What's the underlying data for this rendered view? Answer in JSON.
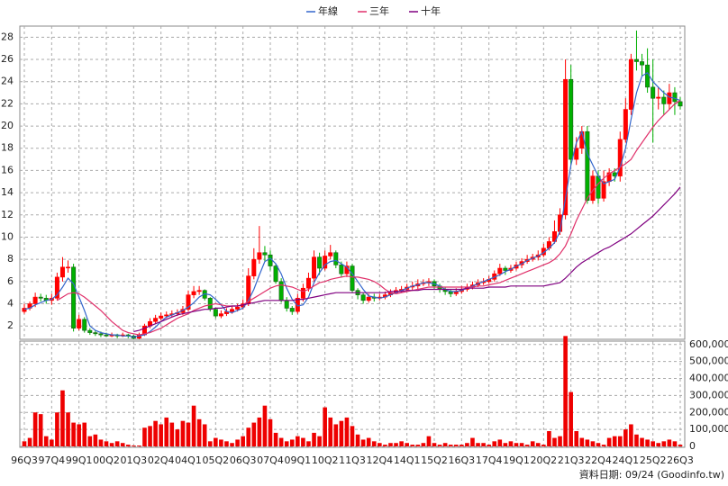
{
  "chart_data": {
    "type": "candlestick",
    "categories": [
      "96Q3",
      null,
      null,
      null,
      null,
      "97Q4",
      null,
      null,
      null,
      null,
      "99Q1",
      null,
      null,
      null,
      null,
      "00Q2",
      null,
      null,
      null,
      null,
      "01Q3",
      null,
      null,
      null,
      null,
      "02Q4",
      null,
      null,
      null,
      null,
      "04Q1",
      null,
      null,
      null,
      null,
      "05Q2",
      null,
      null,
      null,
      null,
      "06Q3",
      null,
      null,
      null,
      null,
      "07Q4",
      null,
      null,
      null,
      null,
      "09Q1",
      null,
      null,
      null,
      null,
      "10Q2",
      null,
      null,
      null,
      null,
      "11Q3",
      null,
      null,
      null,
      null,
      "12Q4",
      null,
      null,
      null,
      null,
      "14Q1",
      null,
      null,
      null,
      null,
      "15Q2",
      null,
      null,
      null,
      null,
      "16Q3",
      null,
      null,
      null,
      null,
      "17Q4",
      null,
      null,
      null,
      null,
      "19Q1",
      null,
      null,
      null,
      null,
      "20Q2",
      null,
      null,
      null,
      null,
      "21Q3",
      null,
      null,
      null,
      null,
      "22Q4",
      null,
      null,
      null,
      null,
      "24Q1",
      null,
      null,
      null,
      null,
      "25Q2",
      null,
      null,
      null,
      null,
      "26Q3"
    ],
    "open": [
      3.3,
      3.6,
      4.0,
      4.6,
      4.5,
      4.3,
      4.5,
      6.4,
      7.3,
      7.3,
      1.8,
      2.6,
      1.6,
      1.4,
      1.3,
      1.2,
      1.1,
      1.2,
      1.1,
      1.2,
      1.1,
      0.9,
      1.2,
      2.0,
      2.4,
      2.7,
      2.9,
      3.0,
      3.1,
      3.2,
      3.5,
      4.8,
      5.1,
      5.2,
      4.5,
      3.5,
      2.9,
      3.1,
      3.3,
      3.5,
      3.7,
      4.0,
      6.5,
      8.0,
      8.6,
      8.4,
      7.4,
      6.0,
      4.3,
      3.6,
      3.3,
      4.5,
      5.4,
      6.3,
      8.2,
      7.2,
      8.3,
      8.6,
      7.5,
      6.7,
      7.4,
      5.2,
      4.8,
      4.3,
      4.6,
      4.5,
      4.6,
      4.8,
      5.0,
      5.2,
      5.3,
      5.5,
      5.6,
      5.8,
      5.9,
      6.0,
      5.6,
      5.3,
      5.1,
      4.9,
      5.1,
      5.3,
      5.5,
      5.7,
      5.9,
      6.0,
      6.2,
      6.7,
      7.2,
      7.0,
      7.2,
      7.5,
      7.8,
      8.0,
      8.2,
      8.4,
      9.0,
      9.6,
      10.5,
      12.0,
      24.2,
      17.0,
      18.0,
      19.5,
      13.3,
      15.5,
      13.5,
      15.0,
      15.8,
      15.5,
      18.8,
      21.5,
      26.0,
      25.8,
      25.5,
      23.5,
      22.5,
      22.6,
      22.0,
      23.0,
      22.2
    ],
    "high": [
      4.0,
      4.2,
      5.0,
      4.9,
      4.8,
      4.9,
      6.8,
      8.2,
      7.9,
      7.6,
      3.0,
      2.8,
      1.8,
      1.6,
      1.5,
      1.4,
      1.4,
      1.3,
      1.4,
      1.3,
      1.2,
      1.4,
      2.2,
      2.7,
      3.0,
      3.2,
      3.3,
      3.4,
      3.5,
      3.8,
      5.2,
      5.6,
      5.6,
      5.3,
      4.6,
      3.6,
      3.4,
      3.6,
      3.8,
      4.0,
      4.4,
      7.2,
      9.0,
      11.0,
      9.2,
      8.8,
      7.6,
      6.3,
      4.6,
      3.8,
      4.9,
      5.8,
      6.8,
      8.8,
      8.6,
      8.8,
      9.3,
      8.8,
      7.8,
      7.8,
      7.6,
      5.4,
      5.0,
      4.9,
      4.9,
      4.9,
      5.1,
      5.3,
      5.5,
      5.6,
      5.8,
      6.0,
      6.2,
      6.2,
      6.3,
      6.2,
      5.8,
      5.5,
      5.3,
      5.4,
      5.6,
      5.8,
      6.0,
      6.2,
      6.3,
      6.5,
      7.0,
      7.6,
      7.4,
      7.5,
      7.8,
      8.1,
      8.4,
      8.5,
      8.8,
      9.4,
      10.0,
      11.5,
      12.6,
      26.0,
      25.5,
      19.0,
      20.0,
      20.0,
      16.0,
      16.0,
      16.0,
      16.2,
      16.2,
      19.5,
      22.5,
      26.5,
      28.6,
      26.5,
      27.0,
      26.0,
      23.5,
      23.2,
      23.8,
      23.5,
      22.6
    ],
    "low": [
      3.1,
      3.4,
      3.7,
      4.2,
      4.0,
      3.9,
      4.3,
      6.0,
      6.8,
      1.5,
      1.6,
      1.4,
      1.2,
      1.1,
      1.0,
      1.0,
      1.0,
      0.9,
      1.0,
      0.9,
      0.8,
      0.8,
      1.1,
      1.8,
      2.2,
      2.5,
      2.7,
      2.8,
      2.9,
      3.0,
      3.3,
      4.5,
      4.8,
      4.3,
      3.3,
      2.7,
      2.7,
      2.9,
      3.1,
      3.3,
      3.5,
      3.8,
      6.2,
      7.6,
      7.8,
      7.0,
      5.8,
      4.1,
      3.3,
      3.0,
      3.1,
      4.2,
      5.1,
      6.0,
      6.6,
      7.0,
      8.0,
      7.2,
      6.4,
      6.4,
      5.0,
      4.4,
      4.0,
      4.1,
      4.2,
      4.3,
      4.4,
      4.6,
      4.9,
      5.0,
      5.1,
      5.2,
      5.3,
      5.6,
      5.6,
      5.3,
      5.0,
      4.8,
      4.6,
      4.7,
      4.9,
      5.1,
      5.3,
      5.5,
      5.7,
      5.8,
      6.0,
      6.5,
      6.6,
      6.8,
      7.0,
      7.2,
      7.6,
      7.8,
      7.9,
      8.2,
      8.8,
      9.4,
      10.2,
      11.6,
      16.5,
      16.5,
      17.5,
      13.0,
      13.0,
      13.0,
      13.2,
      14.6,
      15.0,
      15.0,
      18.5,
      21.0,
      25.0,
      24.5,
      23.0,
      18.5,
      21.5,
      21.0,
      21.5,
      21.0,
      21.5
    ],
    "close": [
      3.6,
      4.0,
      4.6,
      4.5,
      4.3,
      4.5,
      6.4,
      7.3,
      7.3,
      1.8,
      2.6,
      1.6,
      1.4,
      1.3,
      1.2,
      1.1,
      1.2,
      1.1,
      1.2,
      1.1,
      0.9,
      1.2,
      2.0,
      2.4,
      2.7,
      2.9,
      3.0,
      3.1,
      3.2,
      3.5,
      4.8,
      5.1,
      5.2,
      4.5,
      3.5,
      2.9,
      3.1,
      3.3,
      3.5,
      3.7,
      4.0,
      6.5,
      8.0,
      8.6,
      8.4,
      7.4,
      6.0,
      4.3,
      3.6,
      3.3,
      4.5,
      5.4,
      6.3,
      8.2,
      7.2,
      8.3,
      8.6,
      7.5,
      6.7,
      7.4,
      5.2,
      4.8,
      4.3,
      4.6,
      4.5,
      4.6,
      4.8,
      5.0,
      5.2,
      5.3,
      5.5,
      5.6,
      5.8,
      5.9,
      6.0,
      5.6,
      5.3,
      5.1,
      4.9,
      5.1,
      5.3,
      5.5,
      5.7,
      5.9,
      6.0,
      6.2,
      6.7,
      7.2,
      7.0,
      7.2,
      7.5,
      7.8,
      8.0,
      8.2,
      8.4,
      9.0,
      9.6,
      10.5,
      12.0,
      24.2,
      17.0,
      18.0,
      19.5,
      13.3,
      15.5,
      13.5,
      15.0,
      15.8,
      15.5,
      18.8,
      21.5,
      26.0,
      25.8,
      25.5,
      23.5,
      22.5,
      22.6,
      22.0,
      23.0,
      22.2,
      21.8
    ],
    "up_color": "#ff0000",
    "down_color": "#00b000",
    "series": [
      {
        "name": "年線",
        "color": "#3366cc",
        "values": [
          3.5,
          3.6,
          3.9,
          4.1,
          4.3,
          4.4,
          4.8,
          5.5,
          6.3,
          5.8,
          4.6,
          3.4,
          2.0,
          1.6,
          1.4,
          1.3,
          1.2,
          1.2,
          1.1,
          1.1,
          1.0,
          1.1,
          1.2,
          1.5,
          1.9,
          2.4,
          2.8,
          3.0,
          3.2,
          3.4,
          3.7,
          4.1,
          4.6,
          4.9,
          4.8,
          4.4,
          3.9,
          3.3,
          3.2,
          3.4,
          3.6,
          4.3,
          5.3,
          6.6,
          7.8,
          8.1,
          7.6,
          6.7,
          5.4,
          4.4,
          3.8,
          3.9,
          4.6,
          5.9,
          6.8,
          7.5,
          7.8,
          7.9,
          7.6,
          7.3,
          6.7,
          6.0,
          5.3,
          4.7,
          4.6,
          4.5,
          4.6,
          4.8,
          5.0,
          5.2,
          5.4,
          5.6,
          5.7,
          5.9,
          5.9,
          5.8,
          5.6,
          5.3,
          5.1,
          5.1,
          5.2,
          5.4,
          5.6,
          5.8,
          6.0,
          6.2,
          6.4,
          6.6,
          6.9,
          7.1,
          7.4,
          7.6,
          7.9,
          8.1,
          8.3,
          8.6,
          9.0,
          9.5,
          10.5,
          13.5,
          16.5,
          18.5,
          19.5,
          17.5,
          16.5,
          15.5,
          14.8,
          15.0,
          15.2,
          16.3,
          18.0,
          20.6,
          23.0,
          24.5,
          24.8,
          24.0,
          23.5,
          23.0,
          22.6,
          22.5,
          22.3
        ]
      },
      {
        "name": "三年",
        "color": "#e0306a",
        "values": [
          null,
          null,
          null,
          null,
          null,
          null,
          4.3,
          4.6,
          4.9,
          5.0,
          4.9,
          4.6,
          4.2,
          3.8,
          3.4,
          2.9,
          2.4,
          2.0,
          1.6,
          1.4,
          1.3,
          1.2,
          1.3,
          1.4,
          1.6,
          1.8,
          2.1,
          2.4,
          2.7,
          2.9,
          3.1,
          3.4,
          3.6,
          3.8,
          3.9,
          4.0,
          3.9,
          3.8,
          3.8,
          3.8,
          3.9,
          4.2,
          4.5,
          4.8,
          5.1,
          5.4,
          5.6,
          5.7,
          5.6,
          5.5,
          5.3,
          5.1,
          5.3,
          5.6,
          5.9,
          6.0,
          6.2,
          6.3,
          6.4,
          6.5,
          6.4,
          6.4,
          6.3,
          6.2,
          6.0,
          5.7,
          5.3,
          5.0,
          4.9,
          5.0,
          5.1,
          5.2,
          5.3,
          5.4,
          5.5,
          5.5,
          5.5,
          5.5,
          5.5,
          5.5,
          5.5,
          5.5,
          5.5,
          5.6,
          5.6,
          5.7,
          5.8,
          5.9,
          6.1,
          6.3,
          6.5,
          6.7,
          6.9,
          7.1,
          7.3,
          7.5,
          7.7,
          8.0,
          8.5,
          9.2,
          10.3,
          11.5,
          12.5,
          13.5,
          14.2,
          14.8,
          15.3,
          15.7,
          16.0,
          16.3,
          16.6,
          17.0,
          17.8,
          18.5,
          19.2,
          19.9,
          20.5,
          21.0,
          21.5,
          22.0,
          22.3
        ]
      },
      {
        "name": "十年",
        "color": "#800080",
        "values": [
          null,
          null,
          null,
          null,
          null,
          null,
          null,
          null,
          null,
          null,
          null,
          null,
          null,
          null,
          null,
          null,
          null,
          null,
          null,
          null,
          1.5,
          1.6,
          1.8,
          2.0,
          2.2,
          2.4,
          2.6,
          2.8,
          3.0,
          3.1,
          3.2,
          3.3,
          3.4,
          3.5,
          3.5,
          3.6,
          3.6,
          3.7,
          3.8,
          3.8,
          3.9,
          4.0,
          4.1,
          4.2,
          4.3,
          4.3,
          4.3,
          4.3,
          4.3,
          4.3,
          4.4,
          4.4,
          4.5,
          4.6,
          4.7,
          4.8,
          4.9,
          5.0,
          5.0,
          5.0,
          5.0,
          5.0,
          5.0,
          5.0,
          5.0,
          5.0,
          5.0,
          5.1,
          5.1,
          5.1,
          5.2,
          5.2,
          5.2,
          5.3,
          5.3,
          5.3,
          5.3,
          5.3,
          5.3,
          5.3,
          5.3,
          5.4,
          5.4,
          5.4,
          5.4,
          5.5,
          5.5,
          5.5,
          5.5,
          5.6,
          5.6,
          5.6,
          5.6,
          5.6,
          5.6,
          5.6,
          5.7,
          5.8,
          5.9,
          6.3,
          6.8,
          7.3,
          7.7,
          8.0,
          8.3,
          8.6,
          8.9,
          9.1,
          9.4,
          9.7,
          10.0,
          10.3,
          10.7,
          11.1,
          11.5,
          11.9,
          12.4,
          12.9,
          13.4,
          13.9,
          14.5
        ]
      }
    ],
    "ylim": [
      0.8,
      29
    ],
    "yticks": [
      2,
      4,
      6,
      8,
      10,
      12,
      14,
      16,
      18,
      20,
      22,
      24,
      26,
      28
    ],
    "grid": true,
    "volume": {
      "color": "#ee0000",
      "ylim": [
        0,
        620000
      ],
      "yticks": [
        0,
        {
          "value": 100000,
          "label": "100,000"
        },
        {
          "value": 200000,
          "label": "200,000"
        },
        {
          "value": 300000,
          "label": "300,000"
        },
        {
          "value": 400000,
          "label": "400,000"
        },
        {
          "value": 500000,
          "label": "500,000"
        },
        {
          "value": 600000,
          "label": "600,000"
        }
      ],
      "values": [
        30000,
        50000,
        200000,
        190000,
        60000,
        40000,
        200000,
        330000,
        200000,
        140000,
        130000,
        140000,
        60000,
        70000,
        40000,
        30000,
        20000,
        30000,
        20000,
        10000,
        5000,
        5000,
        110000,
        120000,
        150000,
        130000,
        170000,
        140000,
        100000,
        150000,
        140000,
        240000,
        160000,
        130000,
        30000,
        50000,
        40000,
        30000,
        20000,
        40000,
        60000,
        110000,
        140000,
        170000,
        240000,
        160000,
        80000,
        50000,
        30000,
        40000,
        60000,
        50000,
        30000,
        80000,
        60000,
        230000,
        170000,
        130000,
        150000,
        170000,
        120000,
        70000,
        40000,
        50000,
        30000,
        20000,
        10000,
        20000,
        20000,
        30000,
        20000,
        10000,
        10000,
        20000,
        60000,
        20000,
        10000,
        20000,
        10000,
        10000,
        10000,
        20000,
        50000,
        20000,
        20000,
        10000,
        30000,
        40000,
        20000,
        30000,
        20000,
        20000,
        10000,
        30000,
        20000,
        10000,
        90000,
        50000,
        60000,
        650000,
        320000,
        90000,
        50000,
        40000,
        30000,
        20000,
        10000,
        50000,
        60000,
        60000,
        100000,
        130000,
        70000,
        50000,
        40000,
        30000,
        20000,
        30000,
        40000,
        30000,
        10000
      ]
    },
    "source": "資料日期: 09/24  (Goodinfo.tw)"
  }
}
